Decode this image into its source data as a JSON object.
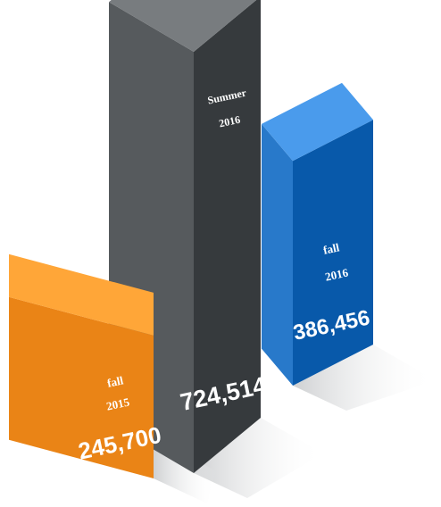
{
  "chart_data": {
    "type": "bar",
    "style": "3d-isometric",
    "categories": [
      {
        "line1": "fall",
        "line2": "2015"
      },
      {
        "line1": "Summer",
        "line2": "2016"
      },
      {
        "line1": "fall",
        "line2": "2016"
      }
    ],
    "values": [
      245700,
      724514,
      386456
    ],
    "value_labels": [
      "245,700",
      "724,514",
      "386,456"
    ],
    "colors": [
      "#f08a1c",
      "#5c6063",
      "#2e7fd0"
    ],
    "title": "",
    "xlabel": "",
    "ylabel": "",
    "grid": false,
    "legend": "none"
  }
}
